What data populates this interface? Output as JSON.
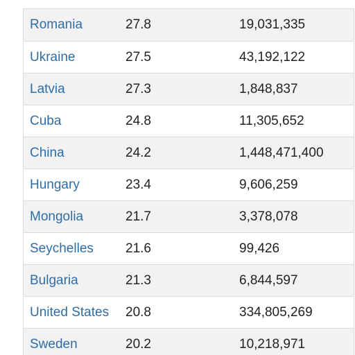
{
  "rows": [
    {
      "country": "Romania",
      "rate": "27.8",
      "population": "19,031,335"
    },
    {
      "country": "Ukraine",
      "rate": "27.5",
      "population": "43,192,122"
    },
    {
      "country": "Latvia",
      "rate": "27.3",
      "population": "1,848,837"
    },
    {
      "country": "Cuba",
      "rate": "24.8",
      "population": "11,305,652"
    },
    {
      "country": "China",
      "rate": "24.2",
      "population": "1,448,471,400"
    },
    {
      "country": "Hungary",
      "rate": "23.4",
      "population": "9,606,259"
    },
    {
      "country": "Mongolia",
      "rate": "21.7",
      "population": "3,378,078"
    },
    {
      "country": "Seychelles",
      "rate": "21.6",
      "population": "99,426"
    },
    {
      "country": "Bulgaria",
      "rate": "21.3",
      "population": "6,844,597"
    },
    {
      "country": "United States",
      "rate": "20.8",
      "population": "334,805,269"
    },
    {
      "country": "Sweden",
      "rate": "20.2",
      "population": "10,218,971"
    }
  ],
  "colors": {
    "link": "#2e6da4",
    "row_stripe": "#f2f2f2",
    "border": "#dcdcdc",
    "text": "#222222"
  }
}
